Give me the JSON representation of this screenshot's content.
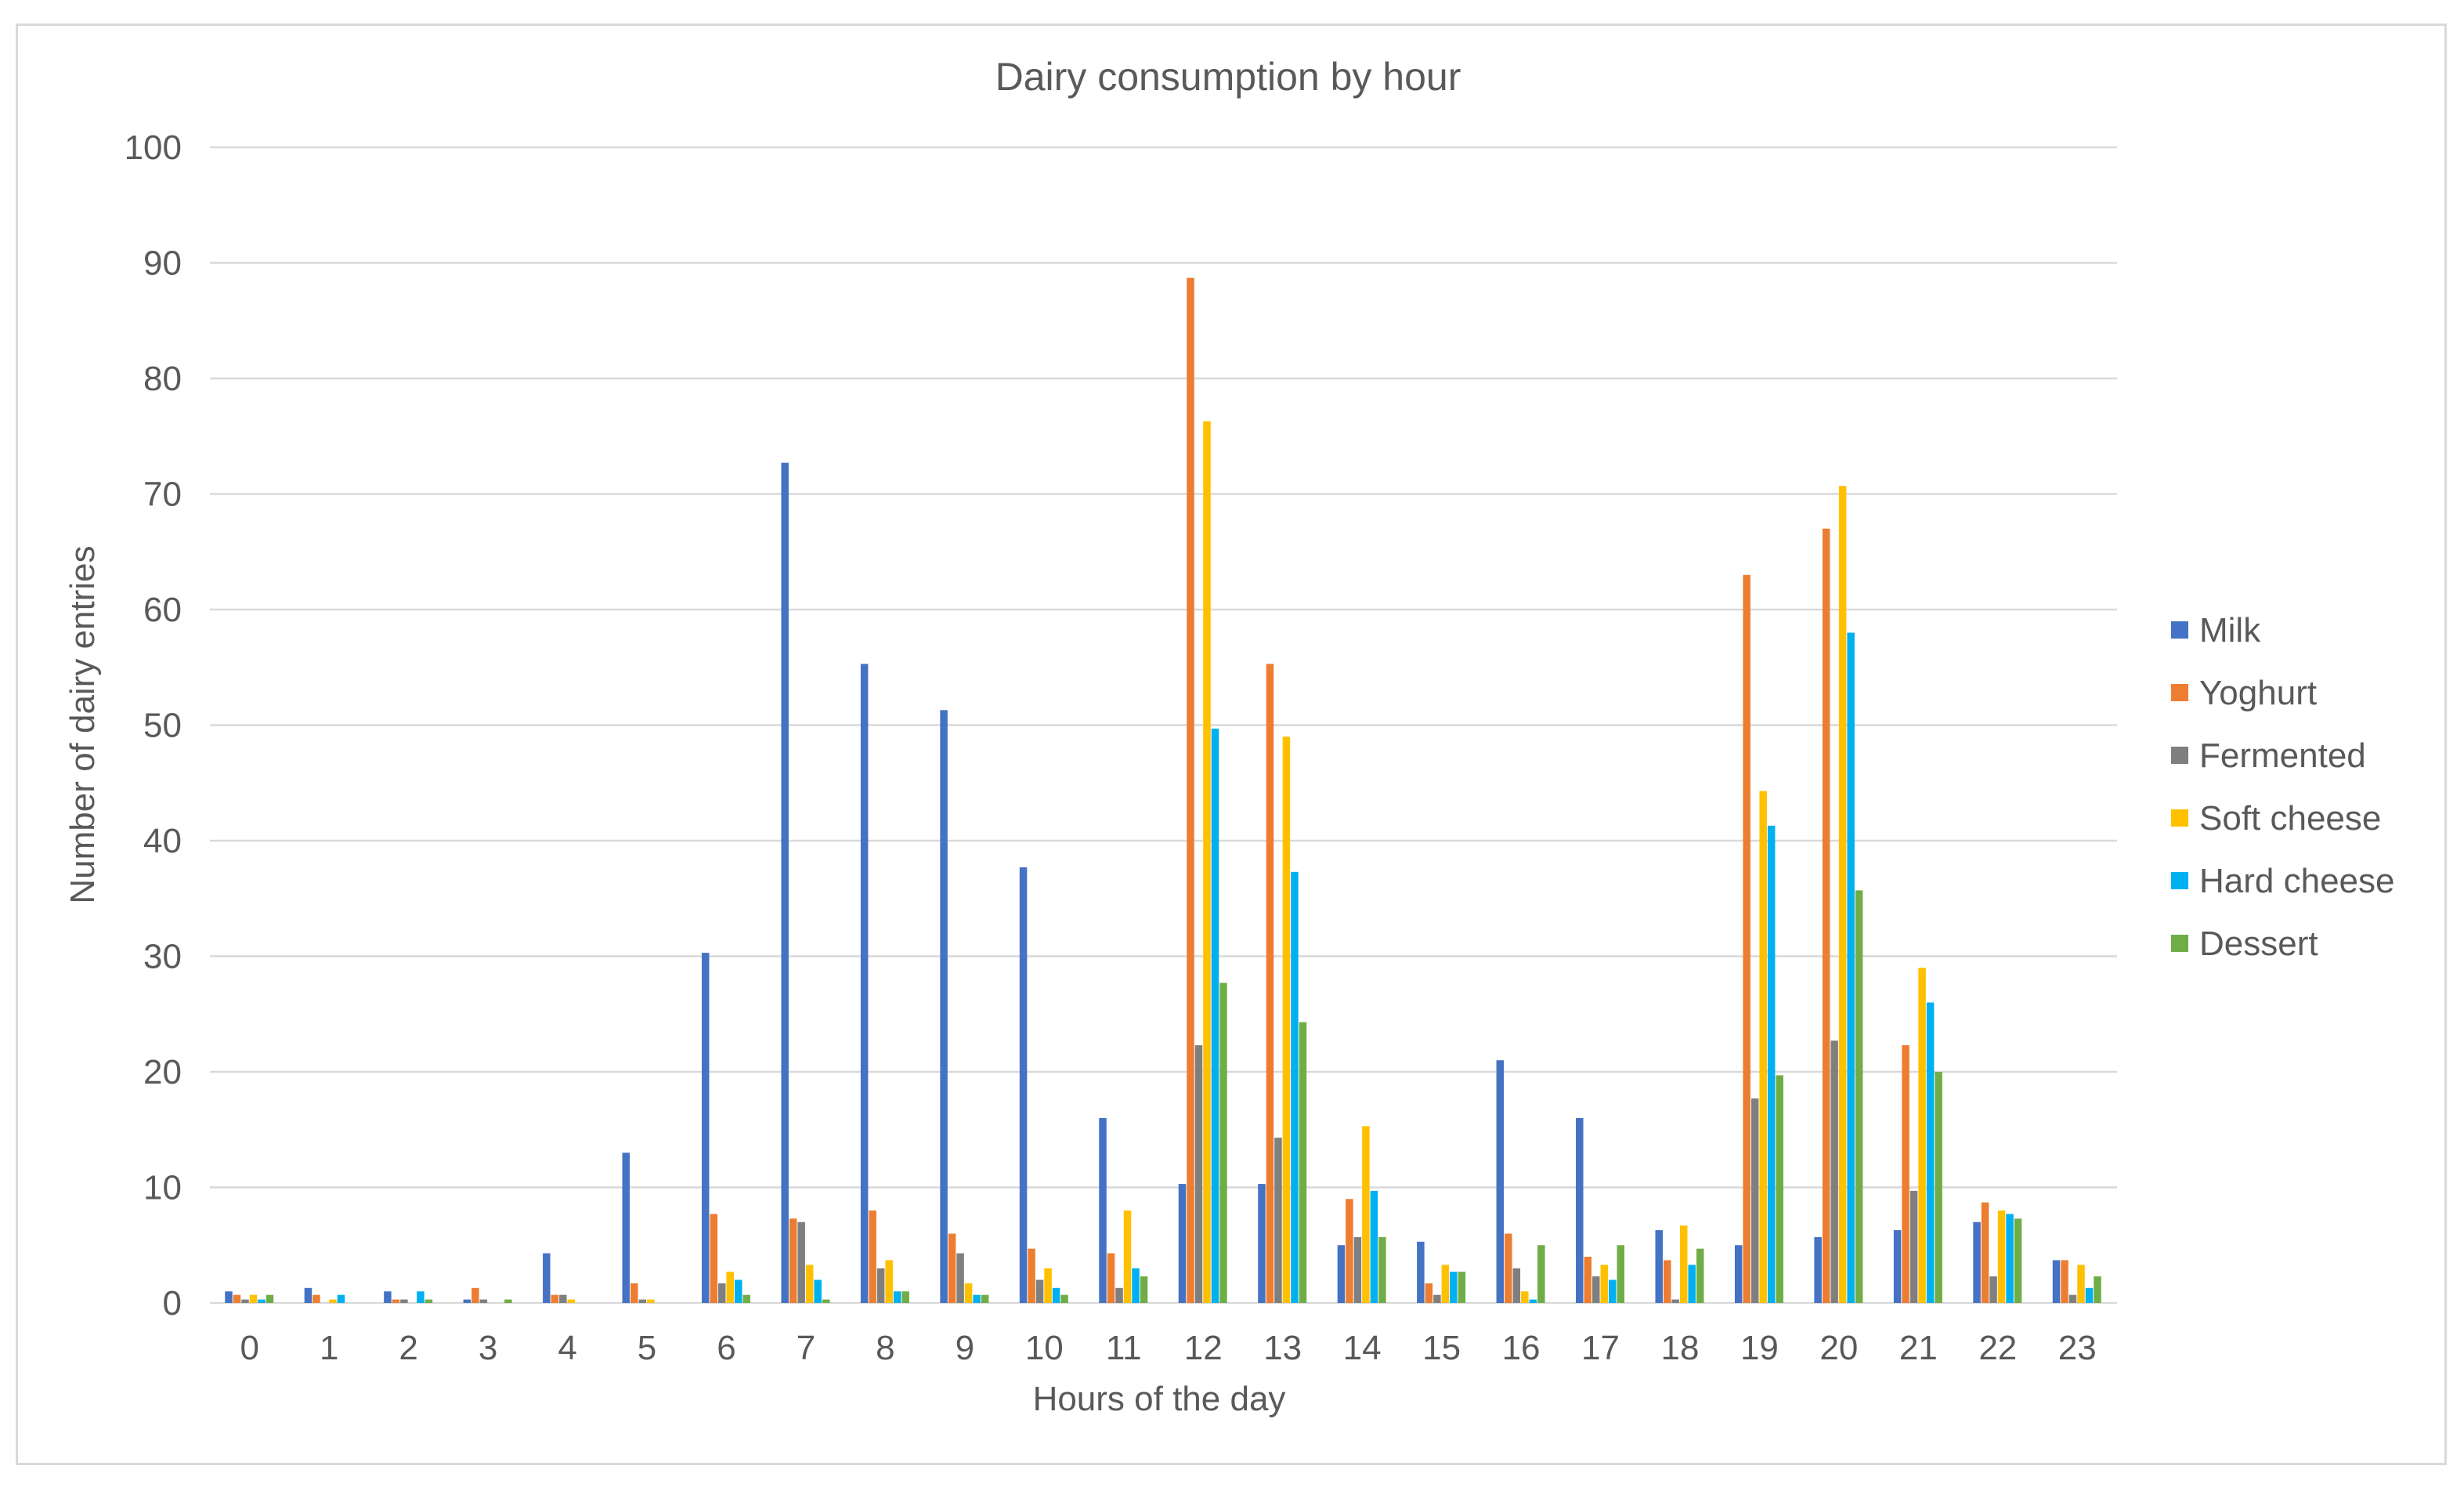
{
  "chart_data": {
    "type": "bar",
    "title": "Dairy consumption by hour",
    "xlabel": "Hours of the day",
    "ylabel": "Number of dairy entries",
    "ylim": [
      0,
      100
    ],
    "yticks": [
      0,
      10,
      20,
      30,
      40,
      50,
      60,
      70,
      80,
      90,
      100
    ],
    "grid": true,
    "legend_position": "right",
    "categories": [
      "0",
      "1",
      "2",
      "3",
      "4",
      "5",
      "6",
      "7",
      "8",
      "9",
      "10",
      "11",
      "12",
      "13",
      "14",
      "15",
      "16",
      "17",
      "18",
      "19",
      "20",
      "21",
      "22",
      "23"
    ],
    "series": [
      {
        "name": "Milk",
        "color": "#4472c4",
        "values": [
          1.0,
          1.3,
          1.0,
          0.3,
          4.3,
          13.0,
          30.3,
          72.7,
          55.3,
          51.3,
          37.7,
          16.0,
          10.3,
          10.3,
          5.0,
          5.3,
          21.0,
          16.0,
          6.3,
          5.0,
          5.7,
          6.3,
          7.0,
          3.7
        ]
      },
      {
        "name": "Yoghurt",
        "color": "#ed7d31",
        "values": [
          0.7,
          0.7,
          0.3,
          1.3,
          0.7,
          1.7,
          7.7,
          7.3,
          8.0,
          6.0,
          4.7,
          4.3,
          88.7,
          55.3,
          9.0,
          1.7,
          6.0,
          4.0,
          3.7,
          63.0,
          67.0,
          22.3,
          8.7,
          3.7
        ]
      },
      {
        "name": "Fermented",
        "color": "#7f7f7f",
        "values": [
          0.3,
          0.0,
          0.3,
          0.3,
          0.7,
          0.3,
          1.7,
          7.0,
          3.0,
          4.3,
          2.0,
          1.3,
          22.3,
          14.3,
          5.7,
          0.7,
          3.0,
          2.3,
          0.3,
          17.7,
          22.7,
          9.7,
          2.3,
          0.7
        ]
      },
      {
        "name": "Soft cheese",
        "color": "#ffc000",
        "values": [
          0.7,
          0.3,
          0.0,
          0.0,
          0.3,
          0.3,
          2.7,
          3.3,
          3.7,
          1.7,
          3.0,
          8.0,
          76.3,
          49.0,
          15.3,
          3.3,
          1.0,
          3.3,
          6.7,
          44.3,
          70.7,
          29.0,
          8.0,
          3.3
        ]
      },
      {
        "name": "Hard cheese",
        "color": "#00b0f0",
        "values": [
          0.3,
          0.7,
          1.0,
          0.0,
          0.0,
          0.0,
          2.0,
          2.0,
          1.0,
          0.7,
          1.3,
          3.0,
          49.7,
          37.3,
          9.7,
          2.7,
          0.3,
          2.0,
          3.3,
          41.3,
          58.0,
          26.0,
          7.7,
          1.3
        ]
      },
      {
        "name": "Dessert",
        "color": "#70ad47",
        "values": [
          0.7,
          0.0,
          0.3,
          0.3,
          0.0,
          0.0,
          0.7,
          0.3,
          1.0,
          0.7,
          0.7,
          2.3,
          27.7,
          24.3,
          5.7,
          2.7,
          5.0,
          5.0,
          4.7,
          19.7,
          35.7,
          20.0,
          7.3,
          2.3
        ]
      }
    ]
  },
  "colors": {
    "gridline": "#d9d9d9",
    "axis_text": "#595959",
    "frame": "#d9d9d9"
  }
}
